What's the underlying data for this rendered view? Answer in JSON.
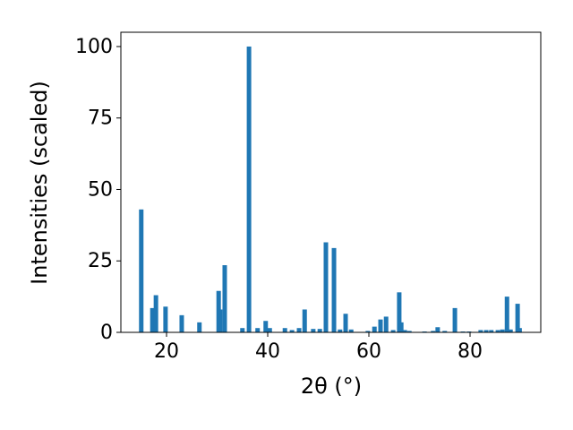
{
  "chart_data": {
    "type": "bar",
    "x_label": "2θ (°)",
    "y_label": "Intensities (scaled)",
    "x": [
      15.0,
      17.2,
      17.9,
      19.8,
      23.0,
      26.5,
      30.3,
      30.6,
      31.5,
      35.0,
      36.3,
      38.0,
      39.6,
      40.4,
      43.4,
      44.8,
      46.2,
      47.3,
      49.0,
      50.3,
      51.5,
      53.1,
      54.3,
      55.4,
      56.5,
      59.8,
      61.1,
      62.3,
      63.4,
      64.8,
      66.0,
      66.4,
      67.1,
      68.0,
      71.0,
      72.7,
      73.6,
      75.0,
      77.0,
      78.6,
      79.8,
      82.1,
      83.2,
      84.2,
      85.5,
      86.4,
      87.3,
      88.0,
      89.4,
      89.8
    ],
    "values": [
      43,
      8.5,
      13,
      9,
      6,
      3.5,
      14.5,
      8,
      23.5,
      1.5,
      100,
      1.5,
      4,
      1.5,
      1.5,
      0.8,
      1.5,
      8,
      1.2,
      1.2,
      31.5,
      29.5,
      1,
      6.5,
      1,
      0.5,
      2,
      4.5,
      5.5,
      0.8,
      14,
      3.5,
      0.8,
      0.5,
      0.3,
      0.5,
      1.8,
      0.5,
      8.5,
      0.3,
      0.3,
      0.8,
      0.8,
      0.8,
      0.8,
      1,
      12.5,
      1,
      10,
      1.5
    ],
    "color": "#1f77b4",
    "xlim": [
      10.97,
      93.98
    ],
    "ylim": [
      0,
      105
    ],
    "xticks": [
      20,
      40,
      60,
      80
    ],
    "yticks": [
      0,
      25,
      50,
      75,
      100
    ],
    "grid": false
  }
}
